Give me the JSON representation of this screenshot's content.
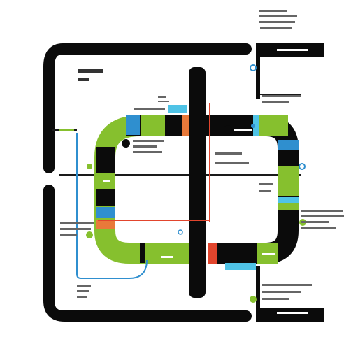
{
  "colors": {
    "frame": "#0b0b0b",
    "loop_green": "#86c02e",
    "loop_black": "#0b0b0b",
    "accent_blue": "#2f8fcf",
    "accent_light_blue": "#4fc3e6",
    "accent_orange": "#e8793a",
    "accent_red": "#e2452d",
    "thin_line": "#1a1a1a",
    "background": "#ffffff"
  },
  "labels": {
    "top_title": "",
    "left_header": "",
    "left_sub": "",
    "loop_tag": ""
  },
  "stations": [
    {
      "id": "node-top",
      "kind": "circle"
    },
    {
      "id": "node-right",
      "kind": "circle"
    },
    {
      "id": "node-left",
      "kind": "circle"
    },
    {
      "id": "node-center",
      "kind": "circle"
    },
    {
      "id": "node-bottom-right",
      "kind": "circle"
    }
  ]
}
